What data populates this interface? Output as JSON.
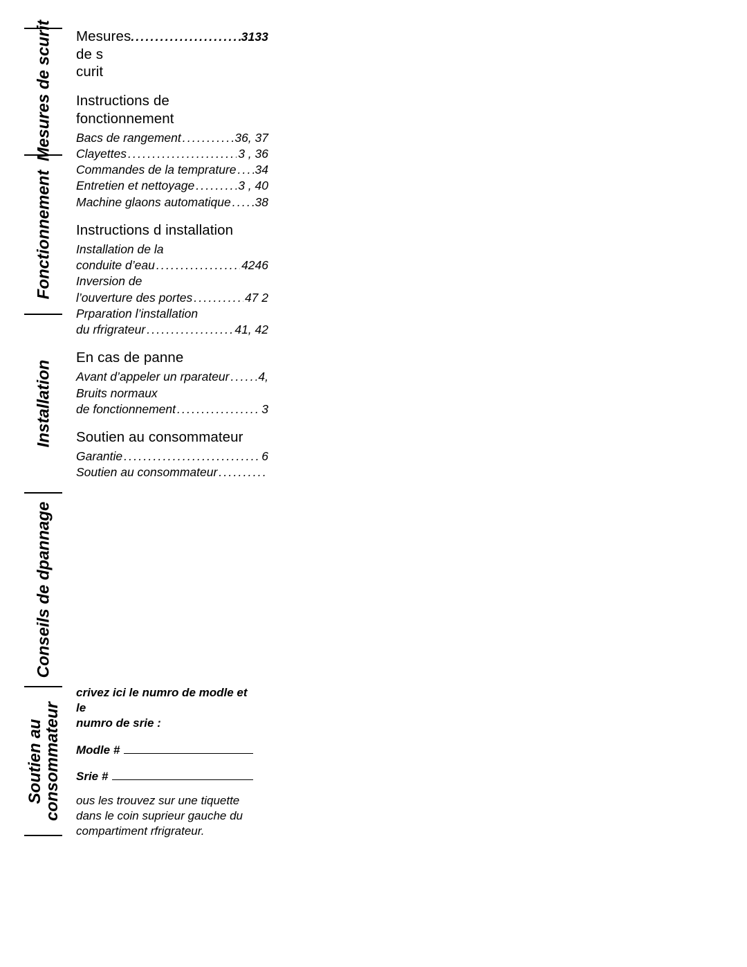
{
  "sidebar": {
    "securite": "Mesures de scurit",
    "fonction": "Fonctionnement",
    "install": "Installation",
    "depannage": "Conseils de dpannage",
    "soutien_l1": "Soutien au",
    "soutien_l2": "consommateur"
  },
  "toc": {
    "securite_head": "Mesures de s curit",
    "securite_pg": "3133",
    "fonction_head": "Instructions de fonctionnement",
    "bacs_lbl": "Bacs de rangement",
    "bacs_pg": "36, 37",
    "clayettes_lbl": "Clayettes",
    "clayettes_pg": "3 , 36",
    "temp_lbl": "Commandes de la temprature",
    "temp_pg": "34",
    "entretien_lbl": "Entretien et nettoyage",
    "entretien_pg": "3 , 40",
    "glacons_lbl": "Machine  glaons automatique",
    "glacons_pg": "38",
    "install_head": "Instructions d installation",
    "eau_l1": "Installation de la",
    "eau_l2": "conduite d’eau",
    "eau_pg": "4246",
    "inv_l1": "Inversion de",
    "inv_l2": "l’ouverture des portes",
    "inv_pg": "47 2",
    "prep_l1": "Prparation  l’installation",
    "prep_l2": "du rfrigrateur",
    "prep_pg": "41, 42",
    "panne_head": "En cas de panne",
    "avant_lbl": "Avant d’appeler un rparateur",
    "avant_pg": " 4,",
    "bruits_l1": "Bruits normaux",
    "bruits_l2": "de fonctionnement",
    "bruits_pg": " 3",
    "soutien_head": "Soutien au consommateur",
    "garantie_lbl": "Garantie",
    "garantie_pg": " 6",
    "sac_lbl": "Soutien au consommateur",
    "sac_pg": ""
  },
  "model": {
    "intro_l1": "crivez ici le numro de modle et le",
    "intro_l2": "numro de srie :",
    "model_label": "Modle #",
    "serial_label": "Srie #",
    "note_l1": " ous les trouvez sur une tiquette",
    "note_l2": "dans le coin suprieur gauche du",
    "note_l3": "compartiment rfrigrateur."
  }
}
